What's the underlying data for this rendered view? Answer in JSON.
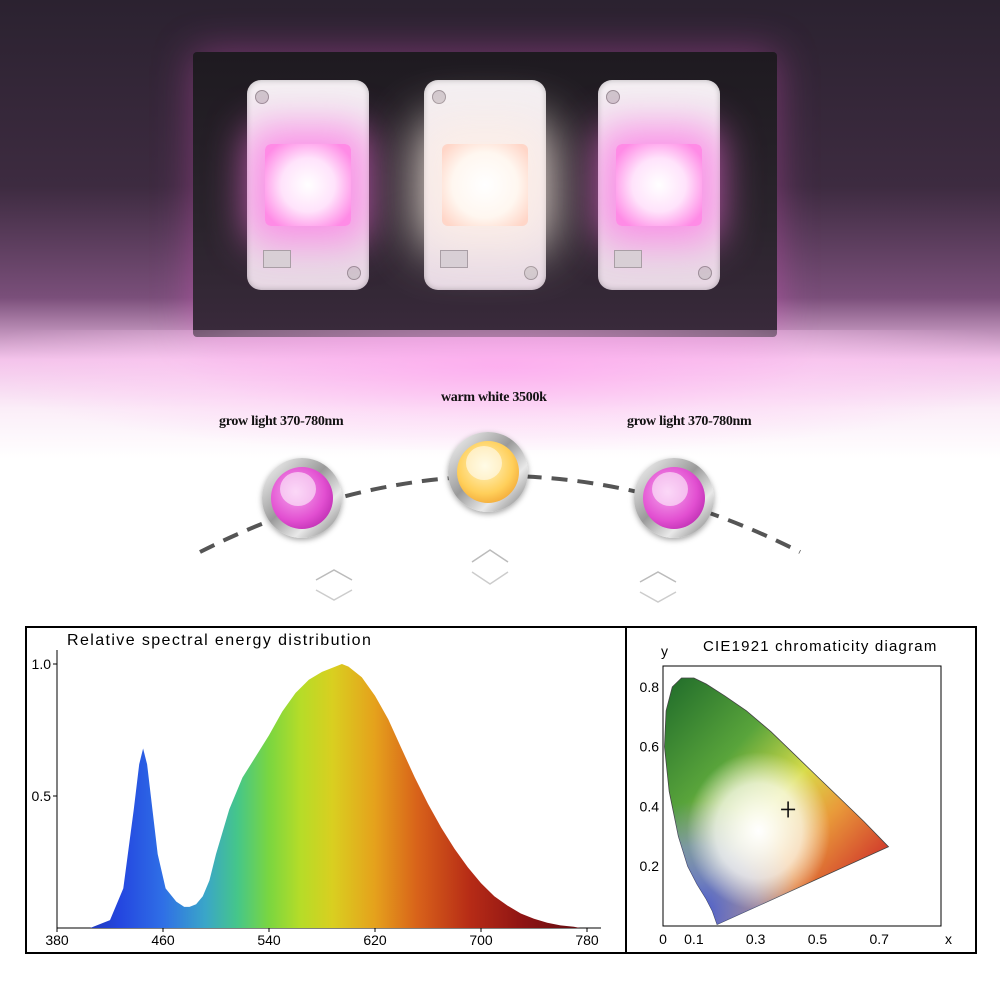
{
  "labels": {
    "left_led": "grow light 370-780nm",
    "center_led": "warm white 3500k",
    "right_led": "grow light 370-780nm"
  },
  "colors": {
    "grow_light": "#e24fd1",
    "warm_white": "#ffcf5a",
    "background_top": "#2b2230"
  },
  "chart_data": [
    {
      "type": "area",
      "title": "Relative spectral energy distribution",
      "xlabel": "",
      "ylabel": "",
      "xticks": [
        380,
        460,
        540,
        620,
        700,
        780
      ],
      "xtick_labels": [
        "380",
        "460",
        "540",
        "620",
        "700",
        "780"
      ],
      "yticks": [
        0.5,
        1.0
      ],
      "ytick_labels": [
        "0.5",
        "1.0"
      ],
      "xlim": [
        380,
        780
      ],
      "ylim": [
        0,
        1.0
      ],
      "grid": false,
      "series": [
        {
          "x": [
            405,
            420,
            430,
            438,
            442,
            445,
            448,
            452,
            456,
            462,
            470,
            476,
            480,
            485,
            490,
            495,
            500,
            510,
            520,
            530,
            540,
            550,
            560,
            570,
            580,
            590,
            595,
            600,
            605,
            610,
            620,
            630,
            640,
            650,
            660,
            670,
            680,
            690,
            700,
            710,
            720,
            730,
            740,
            750,
            760,
            770,
            775
          ],
          "y": [
            0.0,
            0.03,
            0.15,
            0.45,
            0.62,
            0.68,
            0.62,
            0.45,
            0.28,
            0.15,
            0.1,
            0.08,
            0.08,
            0.09,
            0.12,
            0.18,
            0.28,
            0.45,
            0.57,
            0.65,
            0.73,
            0.82,
            0.89,
            0.94,
            0.97,
            0.99,
            1.0,
            0.99,
            0.97,
            0.95,
            0.88,
            0.79,
            0.68,
            0.57,
            0.47,
            0.38,
            0.3,
            0.23,
            0.17,
            0.12,
            0.085,
            0.055,
            0.035,
            0.02,
            0.01,
            0.005,
            0.0
          ]
        }
      ]
    },
    {
      "type": "scatter",
      "title": "CIE1921 chromaticity diagram",
      "xlabel": "x",
      "ylabel": "y",
      "xticks": [
        0,
        0.1,
        0.3,
        0.5,
        0.7
      ],
      "xtick_labels": [
        "0",
        "0.1",
        "0.3",
        "0.5",
        "0.7"
      ],
      "yticks": [
        0.2,
        0.4,
        0.6,
        0.8
      ],
      "ytick_labels": [
        "0.2",
        "0.4",
        "0.6",
        "0.8"
      ],
      "xlim": [
        0,
        0.9
      ],
      "ylim": [
        0,
        0.85
      ],
      "grid": false,
      "gamut_boundary": {
        "x": [
          0.175,
          0.17,
          0.16,
          0.14,
          0.11,
          0.08,
          0.05,
          0.02,
          0.005,
          0.01,
          0.03,
          0.06,
          0.1,
          0.14,
          0.2,
          0.27,
          0.35,
          0.42,
          0.5,
          0.58,
          0.65,
          0.73
        ],
        "y": [
          0.005,
          0.02,
          0.05,
          0.09,
          0.14,
          0.2,
          0.3,
          0.45,
          0.6,
          0.72,
          0.8,
          0.83,
          0.83,
          0.81,
          0.77,
          0.72,
          0.65,
          0.58,
          0.5,
          0.42,
          0.35,
          0.265
        ]
      },
      "series": [
        {
          "x": [
            0.405
          ],
          "y": [
            0.39
          ]
        }
      ]
    }
  ]
}
